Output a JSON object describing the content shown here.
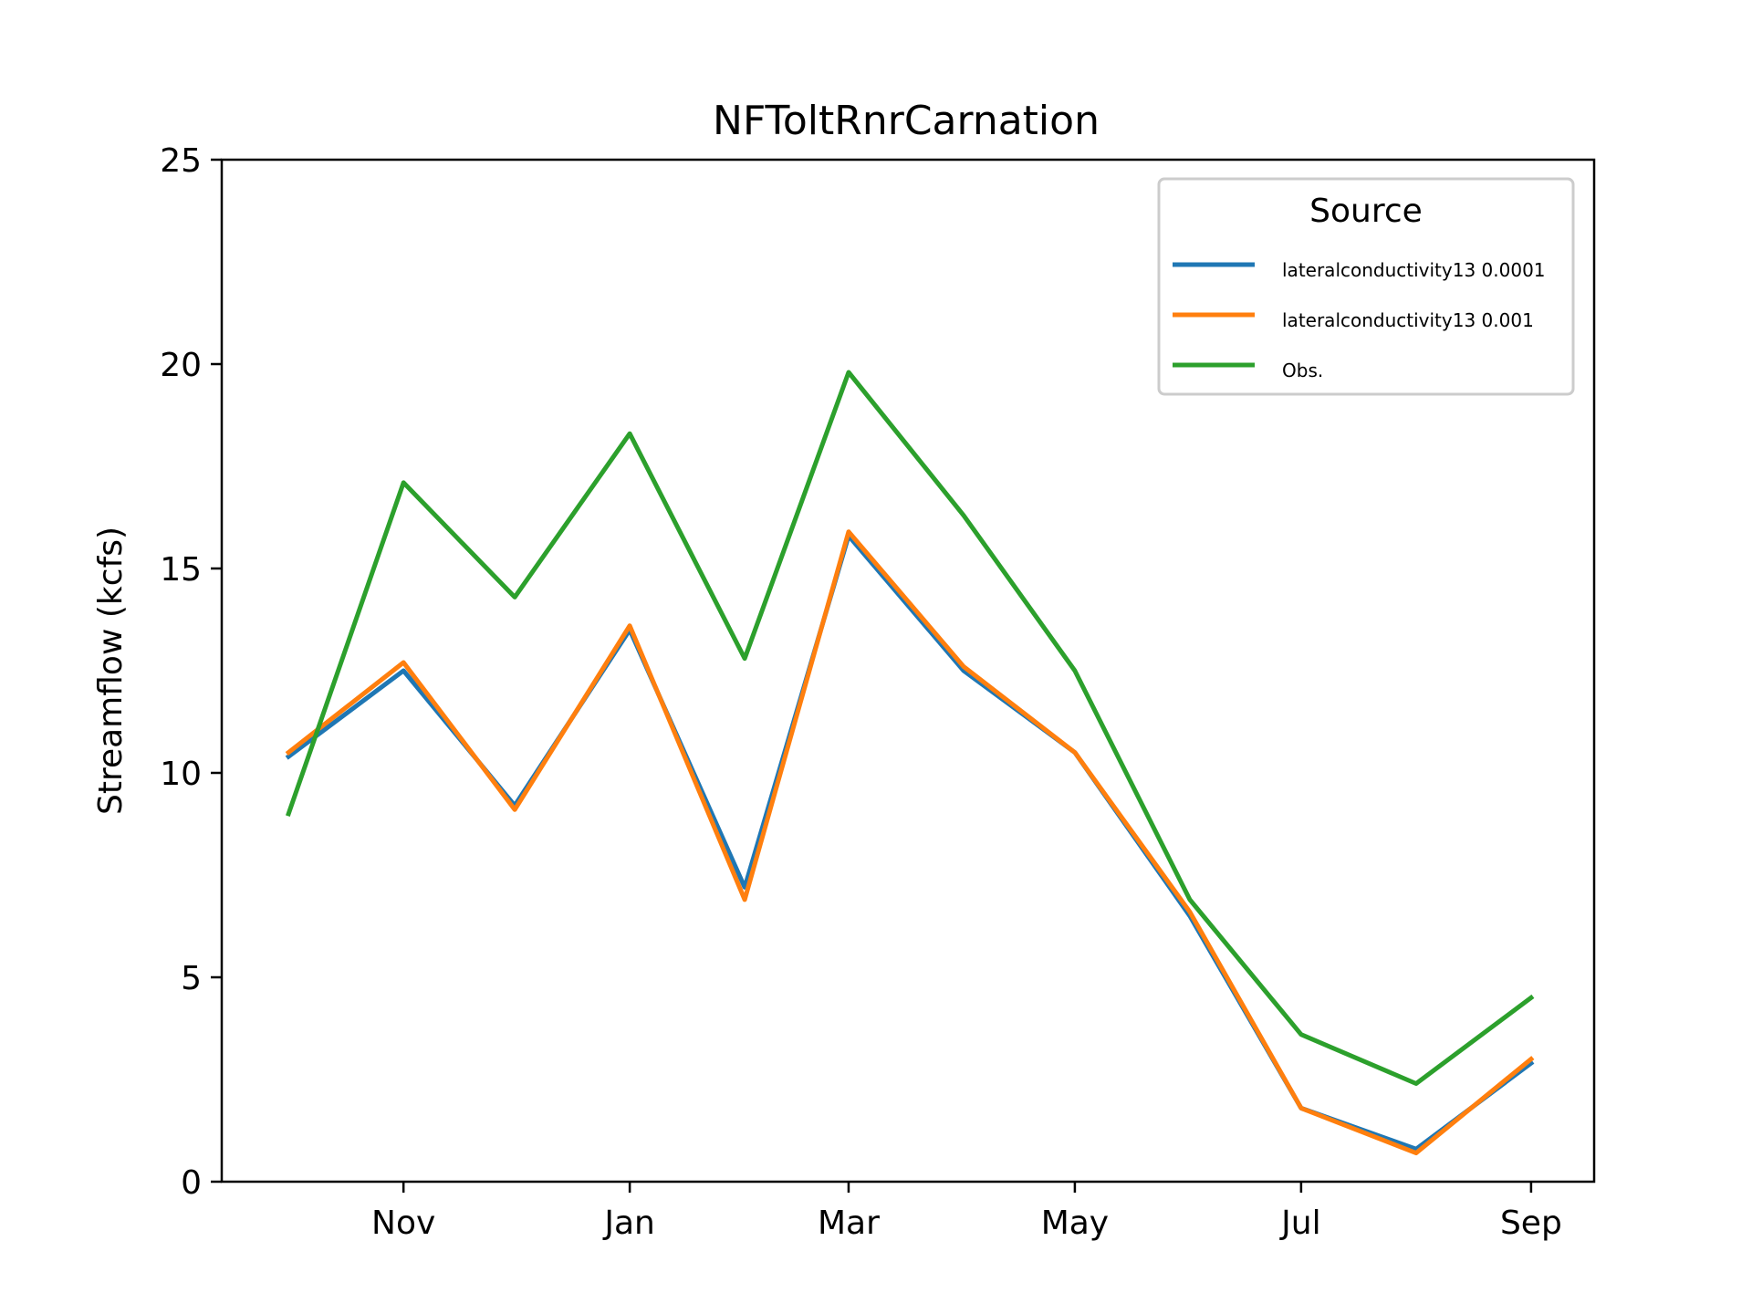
{
  "chart_data": {
    "type": "line",
    "title": "NFToltRnrCarnation",
    "xlabel": "",
    "ylabel": "Streamflow (kcfs)",
    "ylim": [
      0,
      25
    ],
    "yticks": [
      0,
      5,
      10,
      15,
      20,
      25
    ],
    "x": [
      "2017-10-01",
      "2017-11-01",
      "2017-12-01",
      "2018-01-01",
      "2018-02-01",
      "2018-03-01",
      "2018-04-01",
      "2018-05-01",
      "2018-06-01",
      "2018-07-01",
      "2018-08-01",
      "2018-09-01"
    ],
    "xlim": [
      "2017-09-13",
      "2018-09-18"
    ],
    "xticks": [
      {
        "date": "2017-11-01",
        "label": "Nov"
      },
      {
        "date": "2018-01-01",
        "label": "Jan"
      },
      {
        "date": "2018-03-01",
        "label": "Mar"
      },
      {
        "date": "2018-05-01",
        "label": "May"
      },
      {
        "date": "2018-07-01",
        "label": "Jul"
      },
      {
        "date": "2018-09-01",
        "label": "Sep"
      }
    ],
    "grid": false,
    "legend": {
      "title": "Source",
      "position": "top-right"
    },
    "series": [
      {
        "name": "lateralconductivity13 0.0001",
        "color": "#1f77b4",
        "values": [
          10.4,
          12.5,
          9.2,
          13.5,
          7.2,
          15.8,
          12.5,
          10.5,
          6.5,
          1.8,
          0.8,
          2.9
        ]
      },
      {
        "name": "lateralconductivity13 0.001",
        "color": "#ff7f0e",
        "values": [
          10.5,
          12.7,
          9.1,
          13.6,
          6.9,
          15.9,
          12.6,
          10.5,
          6.6,
          1.8,
          0.7,
          3.0
        ]
      },
      {
        "name": "Obs.",
        "color": "#2ca02c",
        "values": [
          9.0,
          17.1,
          14.3,
          18.3,
          12.8,
          19.8,
          16.3,
          12.5,
          6.9,
          3.6,
          2.4,
          4.5
        ]
      }
    ]
  }
}
